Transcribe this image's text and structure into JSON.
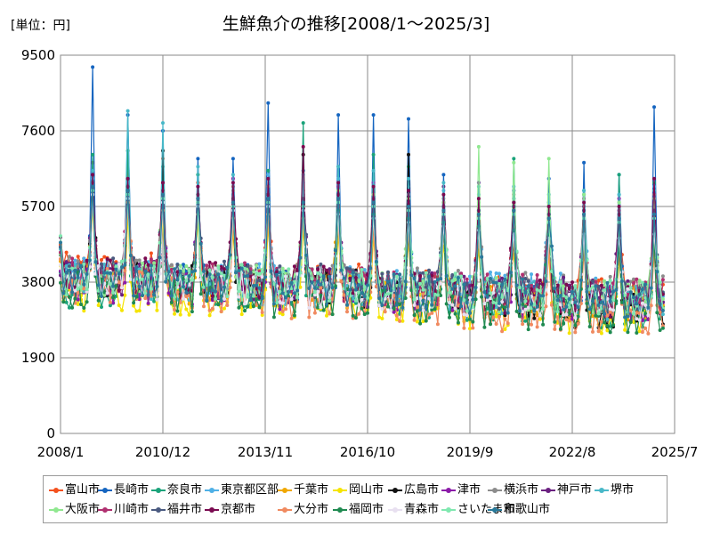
{
  "unit_label": "[単位：円]",
  "chart_data": {
    "type": "line",
    "title": "生鮮魚介の推移[2008/1～2025/3]",
    "xlabel": "",
    "ylabel": "",
    "ylim": [
      0,
      9500
    ],
    "yticks": [
      "0",
      "1900",
      "3800",
      "5700",
      "7600",
      "9500"
    ],
    "x_range": [
      "2008/1",
      "2025/7"
    ],
    "xticks": [
      "2008/1",
      "2010/12",
      "2013/11",
      "2016/10",
      "2019/9",
      "2022/8",
      "2025/7"
    ],
    "grid": true,
    "legend_position": "bottom",
    "sampling": "monthly, 2008/1 to 2025/3 (207 points per series); seasonal peak every December",
    "series": [
      {
        "name": "富山市",
        "color": "#F4511E",
        "base": [
          4100,
          3900,
          3800,
          3650,
          3500,
          3450
        ],
        "dec_peak": [
          6800,
          6600,
          6900,
          6300,
          6200,
          6000,
          6100,
          5900,
          5800,
          5600,
          5400,
          5300,
          5200,
          5100,
          5000,
          4900,
          5600
        ]
      },
      {
        "name": "長崎市",
        "color": "#1565C0",
        "base": [
          3900,
          3800,
          3700,
          3550,
          3400,
          3300
        ],
        "dec_peak": [
          9200,
          8000,
          7600,
          6900,
          6900,
          8300,
          6600,
          8000,
          8000,
          7900,
          6500,
          6300,
          5900,
          6400,
          6800,
          6500,
          8200
        ]
      },
      {
        "name": "奈良市",
        "color": "#1AA37A",
        "base": [
          3600,
          3500,
          3400,
          3300,
          3200,
          3100
        ],
        "dec_peak": [
          7000,
          7100,
          6700,
          6500,
          6000,
          6600,
          7800,
          6700,
          7000,
          6700,
          5800,
          5600,
          6900,
          5800,
          6000,
          6500,
          6300
        ]
      },
      {
        "name": "東京都区部",
        "color": "#4FB0E6",
        "base": [
          4000,
          3900,
          3800,
          3700,
          3600,
          3500
        ],
        "dec_peak": [
          6400,
          6300,
          6100,
          6200,
          6000,
          6500,
          6300,
          6400,
          6300,
          6200,
          6100,
          6000,
          6200,
          5800,
          6100,
          6000,
          6200
        ]
      },
      {
        "name": "千葉市",
        "color": "#F0A800",
        "base": [
          3800,
          3700,
          3600,
          3500,
          3400,
          3300
        ],
        "dec_peak": [
          6200,
          6000,
          5800,
          5700,
          5600,
          5800,
          5700,
          5600,
          5500,
          5400,
          5300,
          5200,
          5100,
          5000,
          5100,
          5000,
          4900
        ]
      },
      {
        "name": "岡山市",
        "color": "#F5E400",
        "base": [
          3500,
          3400,
          3300,
          3200,
          3050,
          2950
        ],
        "dec_peak": [
          5600,
          5500,
          5400,
          5300,
          5100,
          5200,
          5100,
          5000,
          4900,
          4800,
          4700,
          4600,
          4500,
          4400,
          4500,
          4300,
          4400
        ]
      },
      {
        "name": "広島市",
        "color": "#111111",
        "base": [
          3900,
          3800,
          3700,
          3500,
          3300,
          3100
        ],
        "dec_peak": [
          6000,
          6100,
          7100,
          5800,
          5600,
          5900,
          7000,
          5700,
          5500,
          7000,
          5400,
          5200,
          5100,
          5000,
          4900,
          4800,
          4700
        ]
      },
      {
        "name": "津市",
        "color": "#8B1AA8",
        "base": [
          3700,
          3650,
          3550,
          3450,
          3350,
          3250
        ],
        "dec_peak": [
          6100,
          6000,
          6100,
          5900,
          6400,
          6000,
          5900,
          6200,
          6300,
          6000,
          5800,
          6300,
          6100,
          5700,
          5600,
          5900,
          6000
        ]
      },
      {
        "name": "横浜市",
        "color": "#8C8C8C",
        "base": [
          4000,
          3900,
          3800,
          3700,
          3600,
          3500
        ],
        "dec_peak": [
          6300,
          6200,
          6100,
          6000,
          6100,
          6200,
          6000,
          6100,
          6000,
          6000,
          5900,
          5800,
          6000,
          5700,
          5900,
          5800,
          6000
        ]
      },
      {
        "name": "神戸市",
        "color": "#6A2080",
        "base": [
          3900,
          3800,
          3700,
          3600,
          3500,
          3400
        ],
        "dec_peak": [
          6200,
          6100,
          6000,
          5900,
          5800,
          6000,
          5900,
          6000,
          5900,
          5800,
          6200,
          5700,
          5800,
          5600,
          5700,
          5600,
          5800
        ]
      },
      {
        "name": "堺市",
        "color": "#48B8C8",
        "base": [
          3800,
          3700,
          3600,
          3500,
          3400,
          3300
        ],
        "dec_peak": [
          6600,
          8100,
          7800,
          6700,
          6500,
          6400,
          6500,
          6700,
          6600,
          6400,
          6300,
          6200,
          6100,
          6000,
          6100,
          6000,
          6100
        ]
      },
      {
        "name": "大阪市",
        "color": "#90E890",
        "base": [
          3900,
          3800,
          3700,
          3600,
          3500,
          3400
        ],
        "dec_peak": [
          6300,
          6200,
          6100,
          6000,
          5900,
          6000,
          5900,
          6100,
          6000,
          5900,
          5800,
          7200,
          6800,
          6900,
          6000,
          5800,
          5900
        ]
      },
      {
        "name": "川崎市",
        "color": "#B03070",
        "base": [
          3950,
          3850,
          3750,
          3650,
          3550,
          3450
        ],
        "dec_peak": [
          6200,
          6100,
          6000,
          5900,
          5800,
          5900,
          5800,
          5900,
          5800,
          5700,
          5600,
          5500,
          5600,
          5400,
          5500,
          5400,
          5500
        ]
      },
      {
        "name": "福井市",
        "color": "#4A5A80",
        "base": [
          4000,
          3900,
          3800,
          3650,
          3500,
          3400
        ],
        "dec_peak": [
          6300,
          6200,
          6100,
          6000,
          5900,
          6000,
          5900,
          6000,
          5900,
          5800,
          5700,
          5600,
          5700,
          5500,
          5600,
          5500,
          5600
        ]
      },
      {
        "name": "京都市",
        "color": "#7A0A50",
        "base": [
          3950,
          3850,
          3750,
          3600,
          3450,
          3350
        ],
        "dec_peak": [
          6500,
          6400,
          6300,
          6200,
          6300,
          6400,
          7200,
          6300,
          6200,
          6100,
          6000,
          5900,
          5800,
          5700,
          5800,
          5700,
          6400
        ]
      },
      {
        "name": "大分市",
        "color": "#F08A60",
        "base": [
          3700,
          3500,
          3300,
          3150,
          3000,
          2900
        ],
        "dec_peak": [
          6000,
          5800,
          5600,
          5500,
          5400,
          5500,
          5400,
          5300,
          5200,
          5100,
          5000,
          4900,
          4800,
          4700,
          4600,
          4500,
          4600
        ]
      },
      {
        "name": "福岡市",
        "color": "#1F8A50",
        "base": [
          3600,
          3500,
          3350,
          3200,
          3050,
          2950
        ],
        "dec_peak": [
          6100,
          6000,
          5900,
          5800,
          5700,
          5800,
          5700,
          5600,
          5500,
          5400,
          5300,
          5200,
          5100,
          5000,
          4900,
          4800,
          4900
        ]
      },
      {
        "name": "青森市",
        "color": "#E8E0F0",
        "base": [
          3800,
          3700,
          3600,
          3500,
          3400,
          3300
        ],
        "dec_peak": [
          6000,
          5900,
          5800,
          5700,
          5600,
          5700,
          5600,
          5500,
          5400,
          5300,
          5200,
          5100,
          5000,
          4900,
          5000,
          4900,
          5000
        ]
      },
      {
        "name": "さいたま市",
        "color": "#80E8B0",
        "base": [
          3900,
          3800,
          3700,
          3600,
          3500,
          3400
        ],
        "dec_peak": [
          6100,
          6000,
          5900,
          5800,
          5700,
          5800,
          5700,
          5800,
          5700,
          5600,
          5500,
          5400,
          5500,
          5300,
          5400,
          5300,
          5400
        ]
      },
      {
        "name": "和歌山市",
        "color": "#2A7A9A",
        "base": [
          3850,
          3750,
          3650,
          3550,
          3450,
          3350
        ],
        "dec_peak": [
          6200,
          6100,
          6000,
          5900,
          5800,
          5900,
          5800,
          5900,
          5800,
          5700,
          5600,
          5500,
          5600,
          5400,
          5500,
          5400,
          5500
        ]
      }
    ]
  }
}
